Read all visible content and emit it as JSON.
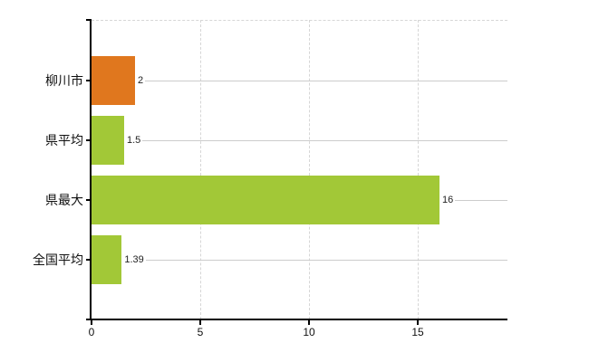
{
  "chart_data": {
    "type": "bar",
    "orientation": "horizontal",
    "title": "",
    "xlabel": "",
    "ylabel": "",
    "categories": [
      "柳川市",
      "県平均",
      "県最大",
      "全国平均"
    ],
    "values": [
      2,
      1.5,
      16,
      1.39
    ],
    "value_labels": [
      "2",
      "1.5",
      "16",
      "1.39"
    ],
    "bar_colors": [
      "#e0771e",
      "#a2c837",
      "#a2c837",
      "#a2c837"
    ],
    "x_ticks": [
      0,
      5,
      10,
      15
    ],
    "x_tick_labels": [
      "0",
      "5",
      "10",
      "15"
    ],
    "xlim": [
      0,
      19.125
    ],
    "grid": "vertical-dashed",
    "legend": "none",
    "leader_lines": true
  },
  "colors": {
    "background": "#ffffff",
    "axis": "#000000",
    "gridline": "#d6d6d6",
    "leader_line": "#cccccc",
    "text": "#111111",
    "bar_orange": "#e0771e",
    "bar_green": "#a2c837"
  }
}
